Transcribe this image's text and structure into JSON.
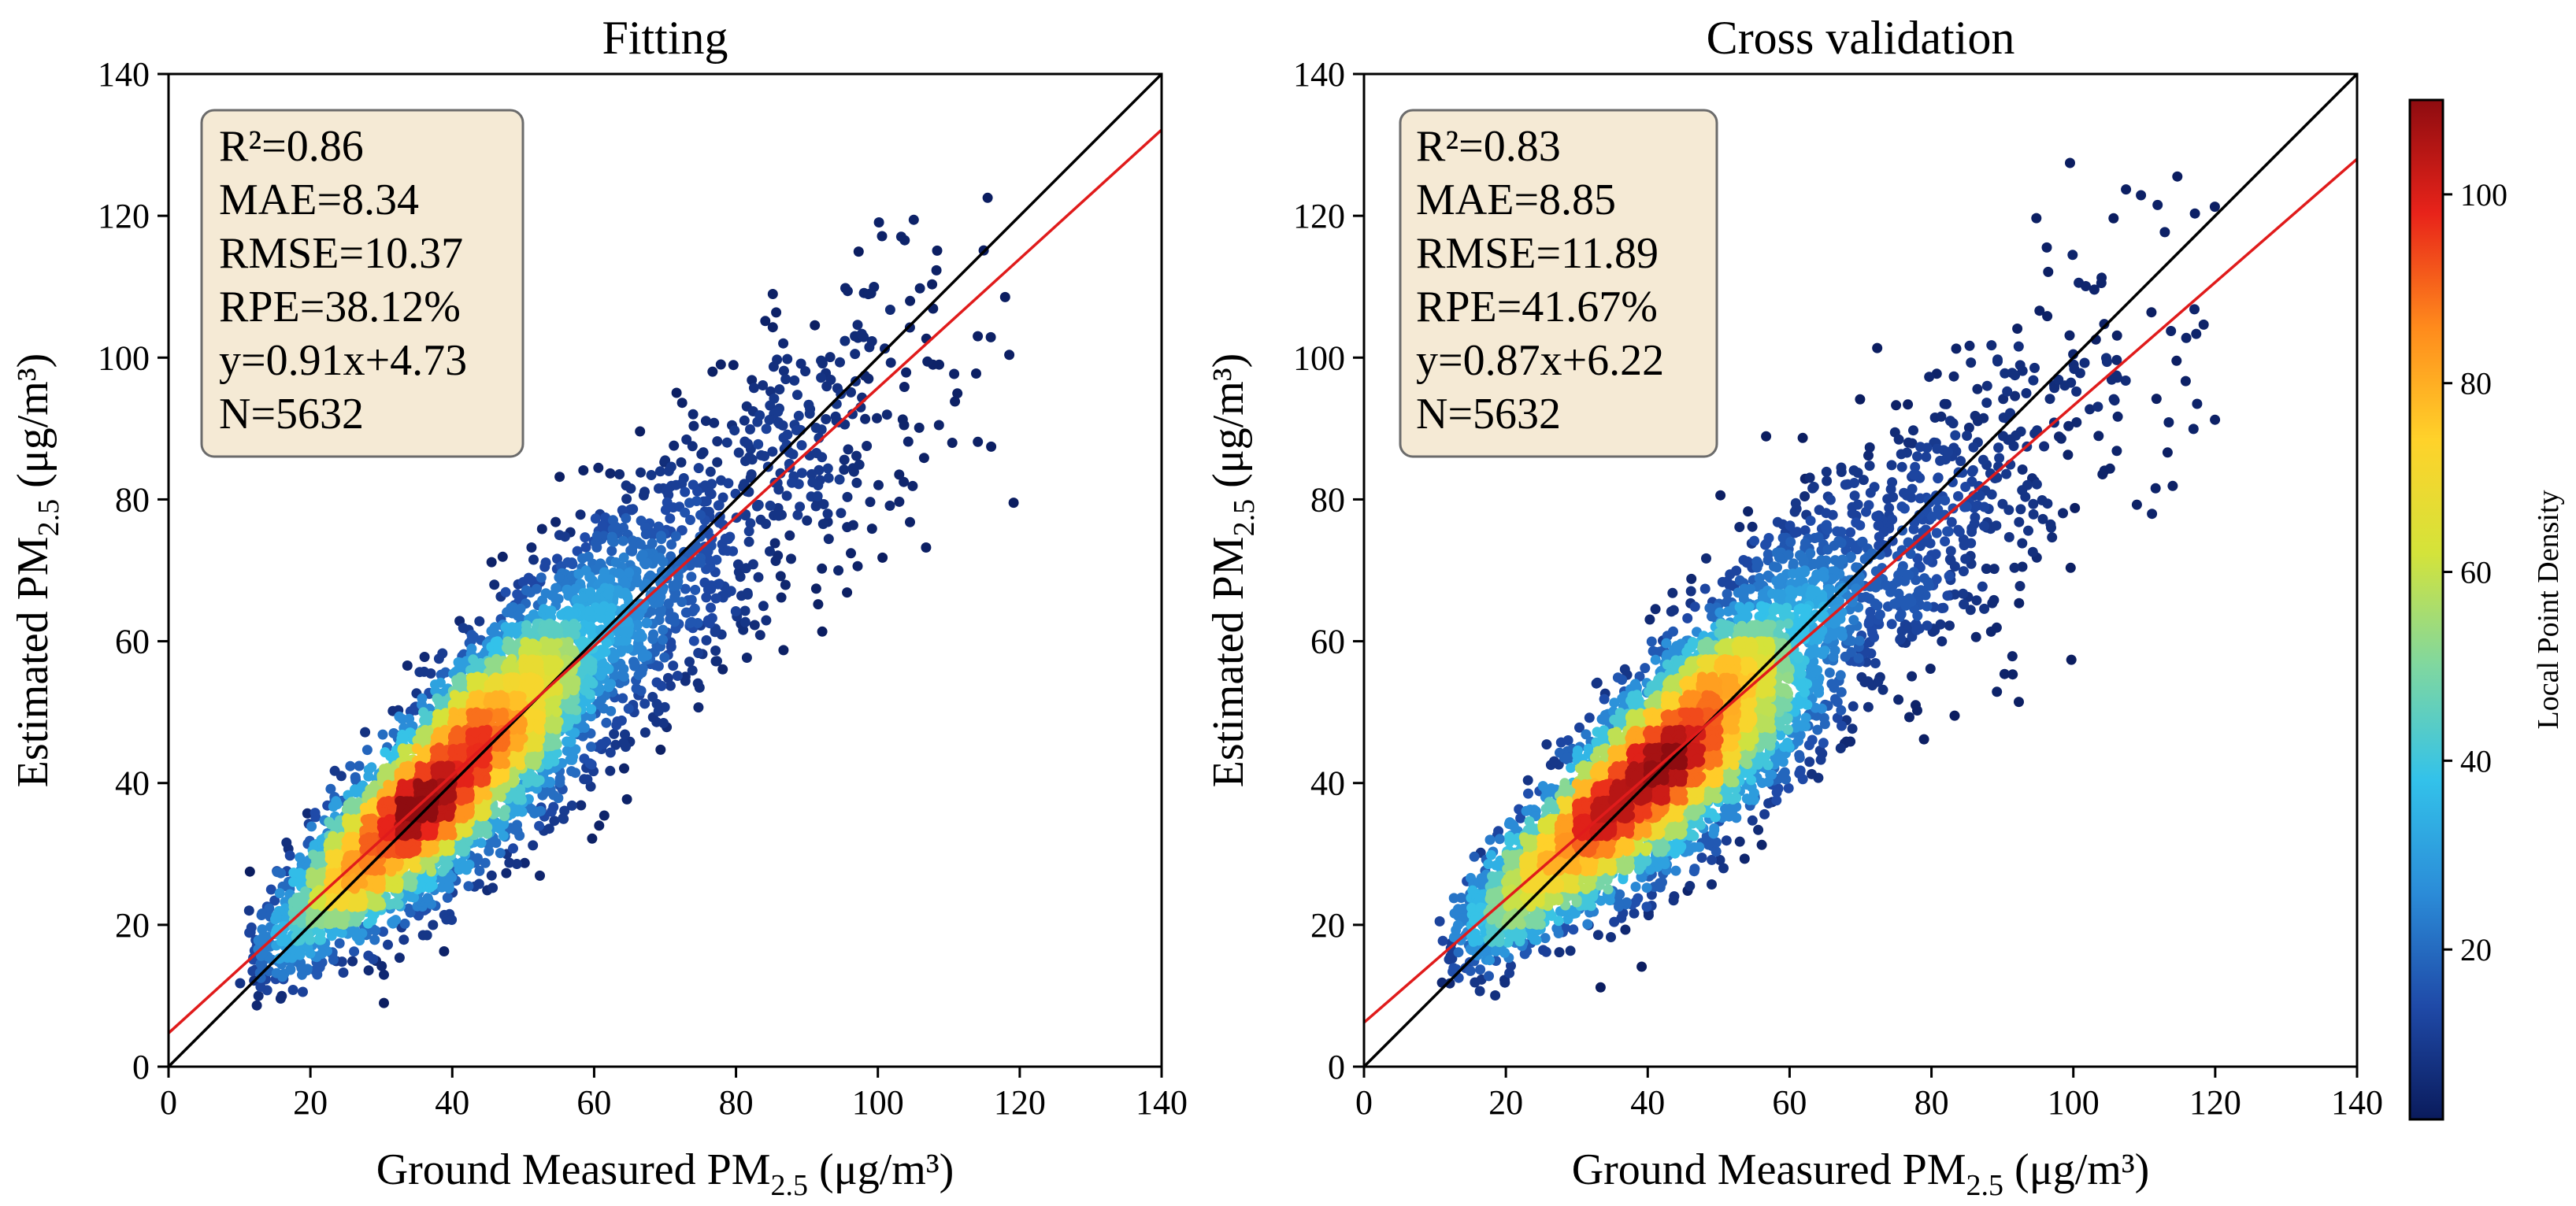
{
  "figure": {
    "colorbar": {
      "label": "Local Point Density",
      "ticks": [
        20,
        40,
        60,
        80,
        100
      ],
      "range": [
        2,
        110
      ],
      "colormap": [
        "#0a1b5c",
        "#1f4aa8",
        "#2b8cd8",
        "#33c2ea",
        "#7fd7a0",
        "#d4e33a",
        "#ffd22a",
        "#ff8a1c",
        "#e8231a",
        "#8e0c10"
      ]
    },
    "line_colors": {
      "identity": "#000000",
      "fit": "#e01b1b"
    },
    "stats_box_color": "#f5ead5"
  },
  "chart_data": [
    {
      "type": "scatter",
      "title": "Fitting",
      "xlabel": "Ground Measured PM",
      "xlabel_sub": "2.5",
      "xlabel_unit": " (μg/m³)",
      "ylabel": "Estimated PM",
      "ylabel_sub": "2.5",
      "ylabel_unit": " (μg/m³)",
      "xlim": [
        0,
        140
      ],
      "ylim": [
        0,
        140
      ],
      "xticks": [
        0,
        20,
        40,
        60,
        80,
        100,
        120,
        140
      ],
      "yticks": [
        0,
        20,
        40,
        60,
        80,
        100,
        120,
        140
      ],
      "identity_line": {
        "slope": 1,
        "intercept": 0
      },
      "fit_line": {
        "slope": 0.91,
        "intercept": 4.73
      },
      "stats": [
        "R²=0.86",
        "MAE=8.34",
        "RMSE=10.37",
        "RPE=38.12%",
        "y=0.91x+4.73",
        "N=5632"
      ],
      "n_points": 5632,
      "density_peaks": [
        [
          42,
          43
        ],
        [
          50,
          52
        ],
        [
          33,
          35
        ]
      ]
    },
    {
      "type": "scatter",
      "title": "Cross validation",
      "xlabel": "Ground Measured PM",
      "xlabel_sub": "2.5",
      "xlabel_unit": " (μg/m³)",
      "ylabel": "Estimated PM",
      "ylabel_sub": "2.5",
      "ylabel_unit": " (μg/m³)",
      "xlim": [
        0,
        140
      ],
      "ylim": [
        0,
        140
      ],
      "xticks": [
        0,
        20,
        40,
        60,
        80,
        100,
        120,
        140
      ],
      "yticks": [
        0,
        20,
        40,
        60,
        80,
        100,
        120,
        140
      ],
      "identity_line": {
        "slope": 1,
        "intercept": 0
      },
      "fit_line": {
        "slope": 0.87,
        "intercept": 6.22
      },
      "stats": [
        "R²=0.83",
        "MAE=8.85",
        "RMSE=11.89",
        "RPE=41.67%",
        "y=0.87x+6.22",
        "N=5632"
      ],
      "n_points": 5632,
      "density_peaks": [
        [
          40,
          41
        ],
        [
          50,
          53
        ]
      ]
    }
  ]
}
